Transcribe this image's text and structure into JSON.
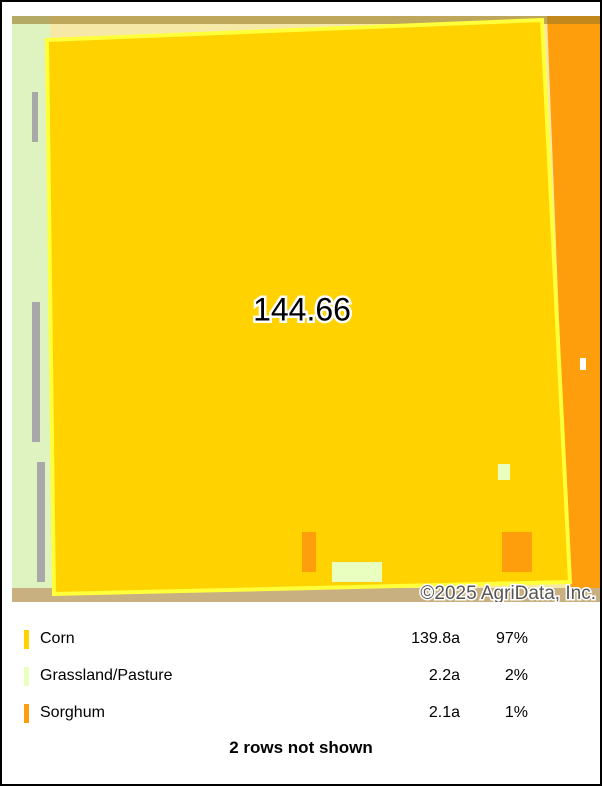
{
  "map": {
    "label": "144.66",
    "copyright": "©2025 AgriData, Inc."
  },
  "legend": {
    "rows": [
      {
        "name": "Corn",
        "acres": "139.8a",
        "percent": "97%",
        "color": "#ffd200"
      },
      {
        "name": "Grassland/Pasture",
        "acres": "2.2a",
        "percent": "2%",
        "color": "#e8ffc0"
      },
      {
        "name": "Sorghum",
        "acres": "2.1a",
        "percent": "1%",
        "color": "#ff9e0c"
      }
    ],
    "footer": "2 rows not shown"
  }
}
